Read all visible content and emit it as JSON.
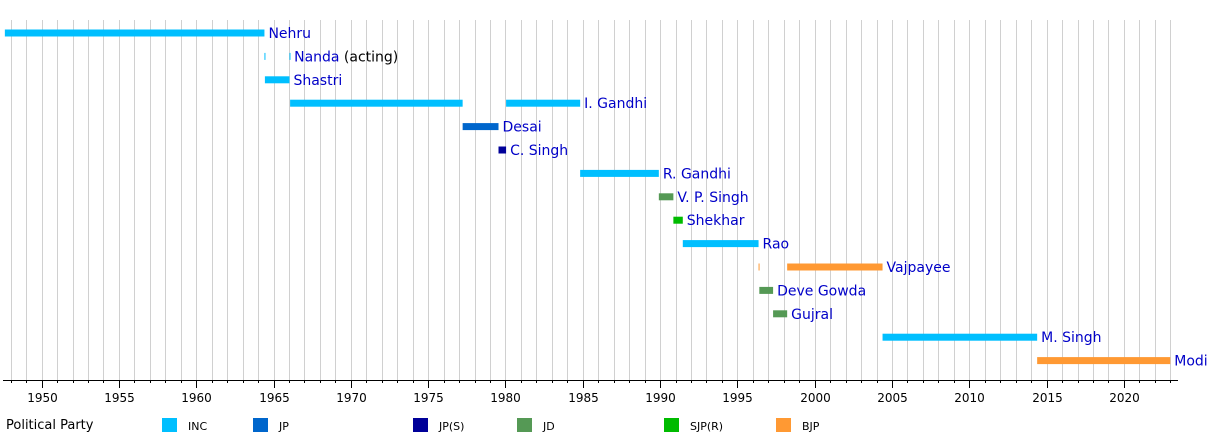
{
  "chart_data": {
    "type": "timeline",
    "title": "",
    "xlabel": "",
    "ylabel": "",
    "xlim": [
      1947.5,
      2023.5
    ],
    "grid": true,
    "x_ticks": [
      1950,
      1955,
      1960,
      1965,
      1970,
      1975,
      1980,
      1985,
      1990,
      1995,
      2000,
      2005,
      2010,
      2015,
      2020
    ],
    "x_tick_labels": [
      "1950",
      "1955",
      "1960",
      "1965",
      "1970",
      "1975",
      "1980",
      "1985",
      "1990",
      "1995",
      "2000",
      "2005",
      "2010",
      "2015",
      "2020"
    ],
    "rows": [
      {
        "label": "Nehru",
        "note": "",
        "party": "INC",
        "terms": [
          [
            1947.62,
            1964.41
          ]
        ]
      },
      {
        "label": "Nanda",
        "note": "(acting)",
        "party": "INC",
        "terms": [
          [
            1964.41,
            1964.44
          ],
          [
            1966.03,
            1966.07
          ]
        ]
      },
      {
        "label": "Shastri",
        "note": "",
        "party": "INC",
        "terms": [
          [
            1964.44,
            1966.03
          ]
        ]
      },
      {
        "label": "I. Gandhi",
        "note": "",
        "party": "INC",
        "terms": [
          [
            1966.07,
            1977.23
          ],
          [
            1980.04,
            1984.83
          ]
        ]
      },
      {
        "label": "Desai",
        "note": "",
        "party": "JP",
        "terms": [
          [
            1977.23,
            1979.55
          ]
        ]
      },
      {
        "label": "C. Singh",
        "note": "",
        "party": "JP(S)",
        "terms": [
          [
            1979.55,
            1980.04
          ]
        ]
      },
      {
        "label": "R. Gandhi",
        "note": "",
        "party": "INC",
        "terms": [
          [
            1984.83,
            1989.92
          ]
        ]
      },
      {
        "label": "V. P. Singh",
        "note": "",
        "party": "JD",
        "terms": [
          [
            1989.92,
            1990.86
          ]
        ]
      },
      {
        "label": "Shekhar",
        "note": "",
        "party": "SJP(R)",
        "terms": [
          [
            1990.86,
            1991.47
          ]
        ]
      },
      {
        "label": "Rao",
        "note": "",
        "party": "INC",
        "terms": [
          [
            1991.47,
            1996.37
          ]
        ]
      },
      {
        "label": "Vajpayee",
        "note": "",
        "party": "BJP",
        "terms": [
          [
            1996.37,
            1996.42
          ],
          [
            1998.22,
            2004.39
          ]
        ]
      },
      {
        "label": "Deve Gowda",
        "note": "",
        "party": "JD",
        "terms": [
          [
            1996.42,
            1997.31
          ]
        ]
      },
      {
        "label": "Gujral",
        "note": "",
        "party": "JD",
        "terms": [
          [
            1997.31,
            1998.22
          ]
        ]
      },
      {
        "label": "M. Singh",
        "note": "",
        "party": "INC",
        "terms": [
          [
            2004.39,
            2014.39
          ]
        ]
      },
      {
        "label": "Modi",
        "note": "",
        "party": "BJP",
        "terms": [
          [
            2014.39,
            2023.0
          ]
        ]
      }
    ],
    "legend": {
      "title": "Political Party",
      "placement": "bottom",
      "entries": [
        {
          "party": "INC",
          "label": "INC",
          "color": "#00bfff"
        },
        {
          "party": "JP",
          "label": "JP",
          "color": "#0066cc"
        },
        {
          "party": "JP(S)",
          "label": "JP(S)",
          "color": "#000099"
        },
        {
          "party": "JD",
          "label": "JD",
          "color": "#559955"
        },
        {
          "party": "SJP(R)",
          "label": "SJP(R)",
          "color": "#00bb00"
        },
        {
          "party": "BJP",
          "label": "BJP",
          "color": "#ff9933"
        }
      ]
    }
  }
}
